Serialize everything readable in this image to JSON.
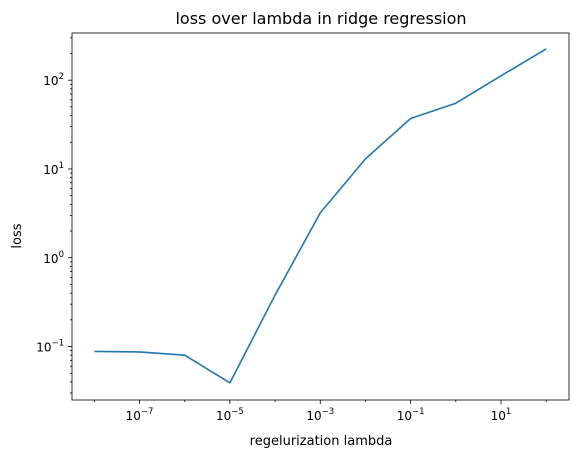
{
  "chart_data": {
    "type": "line",
    "title": "loss over lambda in ridge regression",
    "xlabel": "regelurization lambda",
    "ylabel": "loss",
    "xscale": "log",
    "yscale": "log",
    "xlim": [
      3.2e-09,
      320.0
    ],
    "ylim": [
      0.025,
      340
    ],
    "grid": false,
    "series": [
      {
        "color": "#1f77b4",
        "x": [
          1e-08,
          1e-07,
          1e-06,
          1e-05,
          0.0001,
          0.001,
          0.01,
          0.1,
          1,
          10,
          100
        ],
        "y": [
          0.088,
          0.087,
          0.08,
          0.039,
          0.38,
          3.2,
          13,
          37,
          55,
          112,
          225
        ]
      }
    ],
    "x_ticks": [
      {
        "base": "10",
        "exp": "−7",
        "value": 1e-07
      },
      {
        "base": "10",
        "exp": "−5",
        "value": 1e-05
      },
      {
        "base": "10",
        "exp": "−3",
        "value": 0.001
      },
      {
        "base": "10",
        "exp": "−1",
        "value": 0.1
      },
      {
        "base": "10",
        "exp": "1",
        "value": 10
      }
    ],
    "y_ticks": [
      {
        "base": "10",
        "exp": "−1",
        "value": 0.1
      },
      {
        "base": "10",
        "exp": "0",
        "value": 1
      },
      {
        "base": "10",
        "exp": "1",
        "value": 10
      },
      {
        "base": "10",
        "exp": "2",
        "value": 100
      }
    ]
  }
}
